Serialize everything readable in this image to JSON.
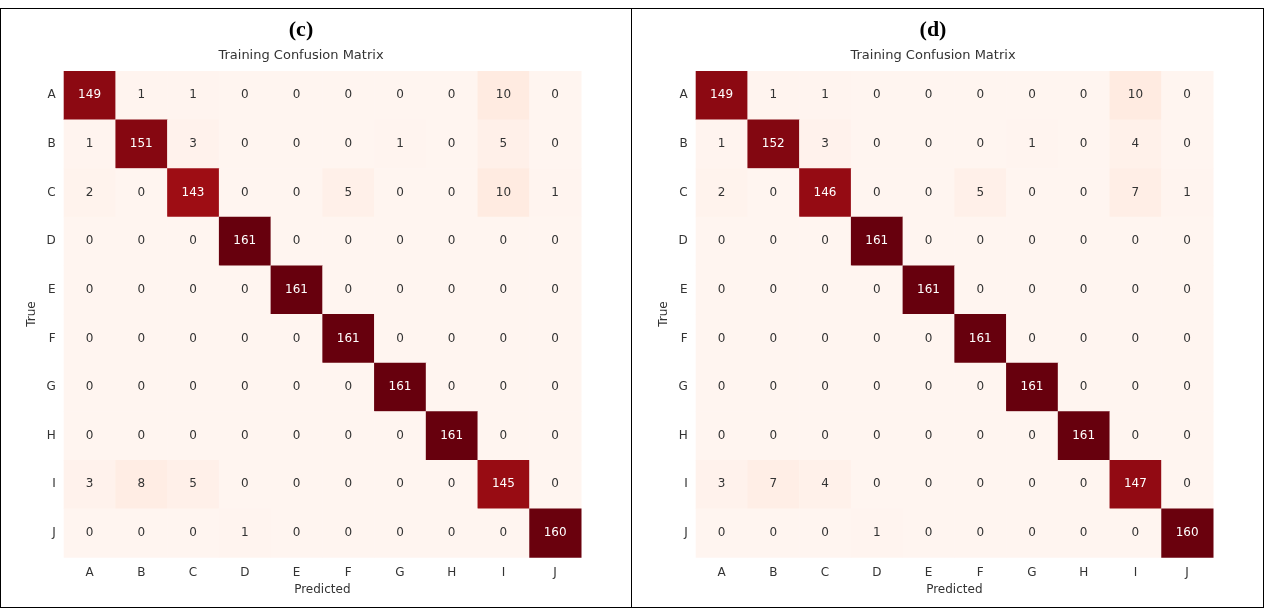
{
  "chart_data": [
    {
      "type": "heatmap",
      "title": "(c)",
      "subtitle": "Training Confusion Matrix",
      "xlabel": "Predicted",
      "ylabel": "True",
      "categories": [
        "A",
        "B",
        "C",
        "D",
        "E",
        "F",
        "G",
        "H",
        "I",
        "J"
      ],
      "y_categories": [
        "A",
        "B",
        "C",
        "D",
        "E",
        "F",
        "G",
        "H",
        "I",
        "J"
      ],
      "cells": [
        [
          149,
          1,
          1,
          0,
          0,
          0,
          0,
          0,
          10,
          0
        ],
        [
          1,
          151,
          3,
          0,
          0,
          0,
          1,
          0,
          5,
          0
        ],
        [
          2,
          0,
          143,
          0,
          0,
          5,
          0,
          0,
          10,
          1
        ],
        [
          0,
          0,
          0,
          161,
          0,
          0,
          0,
          0,
          0,
          0
        ],
        [
          0,
          0,
          0,
          0,
          161,
          0,
          0,
          0,
          0,
          0
        ],
        [
          0,
          0,
          0,
          0,
          0,
          161,
          0,
          0,
          0,
          0
        ],
        [
          0,
          0,
          0,
          0,
          0,
          0,
          161,
          0,
          0,
          0
        ],
        [
          0,
          0,
          0,
          0,
          0,
          0,
          0,
          161,
          0,
          0
        ],
        [
          3,
          8,
          5,
          0,
          0,
          0,
          0,
          0,
          145,
          0
        ],
        [
          0,
          0,
          0,
          1,
          0,
          0,
          0,
          0,
          0,
          160
        ]
      ],
      "data_labels": true
    },
    {
      "type": "heatmap",
      "title": "(d)",
      "subtitle": "Training Confusion Matrix",
      "xlabel": "Predicted",
      "ylabel": "True",
      "categories": [
        "A",
        "B",
        "C",
        "D",
        "E",
        "F",
        "G",
        "H",
        "I",
        "J"
      ],
      "y_categories": [
        "A",
        "B",
        "C",
        "D",
        "E",
        "F",
        "G",
        "H",
        "I",
        "J"
      ],
      "cells": [
        [
          149,
          1,
          1,
          0,
          0,
          0,
          0,
          0,
          10,
          0
        ],
        [
          1,
          152,
          3,
          0,
          0,
          0,
          1,
          0,
          4,
          0
        ],
        [
          2,
          0,
          146,
          0,
          0,
          5,
          0,
          0,
          7,
          1
        ],
        [
          0,
          0,
          0,
          161,
          0,
          0,
          0,
          0,
          0,
          0
        ],
        [
          0,
          0,
          0,
          0,
          161,
          0,
          0,
          0,
          0,
          0
        ],
        [
          0,
          0,
          0,
          0,
          0,
          161,
          0,
          0,
          0,
          0
        ],
        [
          0,
          0,
          0,
          0,
          0,
          0,
          161,
          0,
          0,
          0
        ],
        [
          0,
          0,
          0,
          0,
          0,
          0,
          0,
          161,
          0,
          0
        ],
        [
          3,
          7,
          4,
          0,
          0,
          0,
          0,
          0,
          147,
          0
        ],
        [
          0,
          0,
          0,
          1,
          0,
          0,
          0,
          0,
          0,
          160
        ]
      ],
      "data_labels": true
    }
  ]
}
